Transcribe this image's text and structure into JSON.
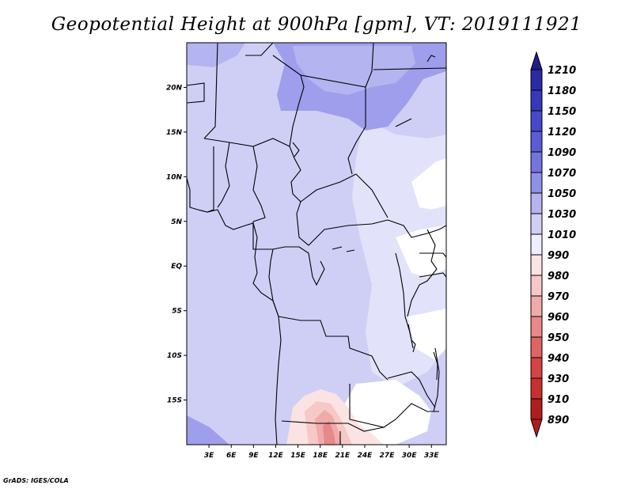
{
  "title": "Geopotential Height at 900hPa [gpm], VT: 2019111921",
  "credit": "GrADS: IGES/COLA",
  "map": {
    "projection": "latlon",
    "lon_range": [
      0,
      35
    ],
    "lat_range": [
      -20,
      25
    ],
    "lat_ticks": [
      {
        "value": 20,
        "label": "20N"
      },
      {
        "value": 15,
        "label": "15N"
      },
      {
        "value": 10,
        "label": "10N"
      },
      {
        "value": 5,
        "label": "5N"
      },
      {
        "value": 0,
        "label": "EQ"
      },
      {
        "value": -5,
        "label": "5S"
      },
      {
        "value": -10,
        "label": "10S"
      },
      {
        "value": -15,
        "label": "15S"
      }
    ],
    "lon_ticks": [
      {
        "value": 3,
        "label": "3E"
      },
      {
        "value": 6,
        "label": "6E"
      },
      {
        "value": 9,
        "label": "9E"
      },
      {
        "value": 12,
        "label": "12E"
      },
      {
        "value": 15,
        "label": "15E"
      },
      {
        "value": 18,
        "label": "18E"
      },
      {
        "value": 21,
        "label": "21E"
      },
      {
        "value": 24,
        "label": "24E"
      },
      {
        "value": 27,
        "label": "27E"
      },
      {
        "value": 30,
        "label": "30E"
      },
      {
        "value": 33,
        "label": "33E"
      }
    ]
  },
  "colorbar": {
    "levels": [
      "1210",
      "1180",
      "1150",
      "1120",
      "1090",
      "1070",
      "1050",
      "1030",
      "1010",
      "990",
      "980",
      "970",
      "960",
      "950",
      "940",
      "930",
      "910",
      "890"
    ],
    "colors": [
      "#1e1e8c",
      "#2a2aa6",
      "#3838bc",
      "#4848cc",
      "#5c5cd8",
      "#7474e0",
      "#9090e8",
      "#b4b4f0",
      "#cfcff6",
      "#eeeefc",
      "#fbe3e3",
      "#f6c8c8",
      "#f0aaaa",
      "#e88888",
      "#df6464",
      "#d44444",
      "#c83030",
      "#b01e1e"
    ]
  },
  "field_colors": {
    "background": "#cfcff6",
    "light": "#e2e2fa",
    "medium": "#b4b4f0",
    "strong": "#9e9eec",
    "white": "#ffffff",
    "pink1": "#fbe3e3",
    "pink2": "#f6c8c8",
    "pink3": "#f0aaaa",
    "pink4": "#e88888"
  }
}
